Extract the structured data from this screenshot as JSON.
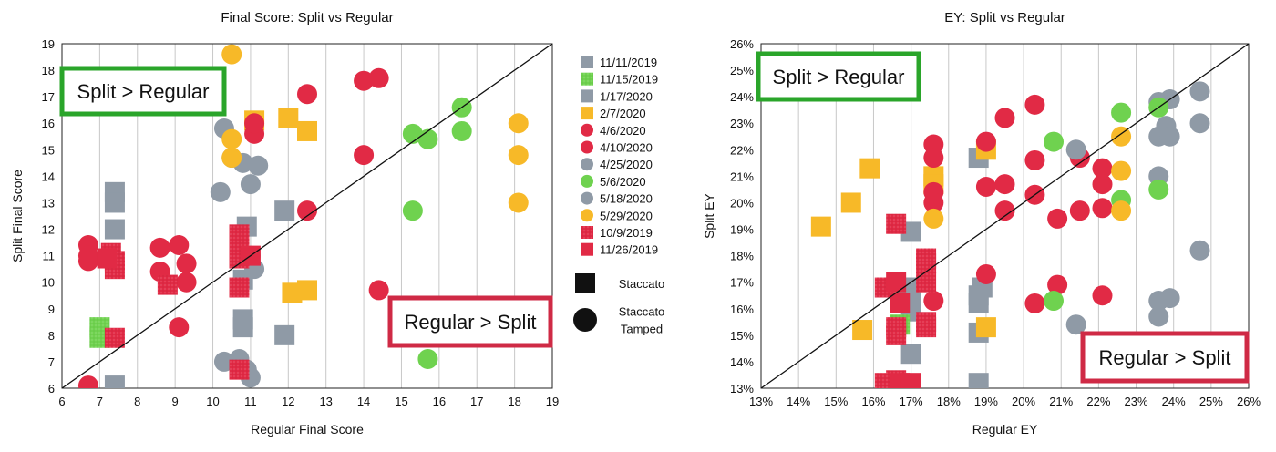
{
  "colors": {
    "gray": "#8f9aa6",
    "green": "#6fd24f",
    "yellow": "#f7b928",
    "red": "#e12a45",
    "green_box": "#2aa52a",
    "red_box": "#cf2a45"
  },
  "legend": {
    "entries": [
      {
        "label": "11/11/2019",
        "color": "gray",
        "shape": "square",
        "texture": false
      },
      {
        "label": "11/15/2019",
        "color": "green",
        "shape": "square",
        "texture": true
      },
      {
        "label": "1/17/2020",
        "color": "gray",
        "shape": "square",
        "texture": false
      },
      {
        "label": "2/7/2020",
        "color": "yellow",
        "shape": "square",
        "texture": false
      },
      {
        "label": "4/6/2020",
        "color": "red",
        "shape": "circle",
        "texture": false
      },
      {
        "label": "4/10/2020",
        "color": "red",
        "shape": "circle",
        "texture": false
      },
      {
        "label": "4/25/2020",
        "color": "gray",
        "shape": "circle",
        "texture": false
      },
      {
        "label": "5/6/2020",
        "color": "green",
        "shape": "circle",
        "texture": false
      },
      {
        "label": "5/18/2020",
        "color": "gray",
        "shape": "circle",
        "texture": false
      },
      {
        "label": "5/29/2020",
        "color": "yellow",
        "shape": "circle",
        "texture": false
      },
      {
        "label": "10/9/2019",
        "color": "red",
        "shape": "square",
        "texture": true
      },
      {
        "label": "11/26/2019",
        "color": "red",
        "shape": "square",
        "texture": false
      }
    ],
    "shapes": [
      {
        "shape": "square",
        "label_lines": [
          "Staccato"
        ]
      },
      {
        "shape": "circle",
        "label_lines": [
          "Staccato",
          "Tamped"
        ]
      }
    ]
  },
  "chart_data": [
    {
      "type": "scatter",
      "title": "Final Score: Split vs Regular",
      "xlabel": "Regular Final Score",
      "ylabel": "Split Final Score",
      "xlim": [
        6,
        19
      ],
      "ylim": [
        6,
        19
      ],
      "xticks": [
        6,
        7,
        8,
        9,
        10,
        11,
        12,
        13,
        14,
        15,
        16,
        17,
        18,
        19
      ],
      "yticks": [
        6,
        7,
        8,
        9,
        10,
        11,
        12,
        13,
        14,
        15,
        16,
        17,
        18,
        19
      ],
      "tick_format": "int",
      "grid": "vertical",
      "reference_line": "y=x",
      "annotations": [
        {
          "text": "Split > Regular",
          "color": "green_box",
          "corner": "top-left"
        },
        {
          "text": "Regular > Split",
          "color": "red_box",
          "corner": "bottom-right"
        }
      ],
      "series": [
        {
          "name": "11/11/2019",
          "color": "gray",
          "shape": "square",
          "points": [
            [
              7.4,
              13.4
            ],
            [
              7.4,
              13.0
            ],
            [
              7.4,
              12.0
            ],
            [
              7.4,
              6.1
            ],
            [
              10.9,
              12.1
            ],
            [
              10.8,
              8.6
            ],
            [
              10.8,
              8.3
            ],
            [
              11.9,
              8.0
            ]
          ]
        },
        {
          "name": "11/15/2019",
          "color": "green",
          "shape": "square",
          "points": [
            [
              7.0,
              8.3
            ],
            [
              7.0,
              7.9
            ]
          ]
        },
        {
          "name": "1/17/2020",
          "color": "gray",
          "shape": "square",
          "points": [
            [
              11.9,
              12.7
            ],
            [
              10.8,
              10.1
            ]
          ]
        },
        {
          "name": "2/7/2020",
          "color": "yellow",
          "shape": "square",
          "points": [
            [
              11.1,
              16.1
            ],
            [
              12.0,
              16.2
            ],
            [
              12.5,
              15.7
            ],
            [
              12.1,
              9.6
            ],
            [
              12.5,
              9.7
            ]
          ]
        },
        {
          "name": "4/6/2020",
          "color": "red",
          "shape": "circle",
          "points": [
            [
              6.7,
              11.4
            ],
            [
              6.7,
              11.0
            ],
            [
              6.7,
              10.8
            ],
            [
              8.6,
              11.3
            ],
            [
              8.6,
              10.4
            ],
            [
              9.1,
              11.4
            ],
            [
              9.3,
              10.7
            ],
            [
              9.3,
              10.0
            ],
            [
              9.1,
              8.3
            ],
            [
              6.7,
              6.1
            ]
          ]
        },
        {
          "name": "4/10/2020",
          "color": "red",
          "shape": "circle",
          "points": [
            [
              11.1,
              15.6
            ],
            [
              11.1,
              16.0
            ],
            [
              12.5,
              17.1
            ],
            [
              14.0,
              17.6
            ],
            [
              14.4,
              17.7
            ],
            [
              14.0,
              14.8
            ],
            [
              12.5,
              12.7
            ],
            [
              14.4,
              9.7
            ]
          ]
        },
        {
          "name": "4/25/2020",
          "color": "gray",
          "shape": "circle",
          "points": [
            [
              10.3,
              15.8
            ],
            [
              10.2,
              13.4
            ],
            [
              10.5,
              14.7
            ],
            [
              10.8,
              14.5
            ],
            [
              11.2,
              14.4
            ],
            [
              11.0,
              13.7
            ],
            [
              11.0,
              11.0
            ],
            [
              11.1,
              10.5
            ],
            [
              10.7,
              7.1
            ]
          ]
        },
        {
          "name": "5/6/2020",
          "color": "green",
          "shape": "circle",
          "points": [
            [
              15.3,
              15.6
            ],
            [
              15.7,
              15.4
            ],
            [
              16.6,
              16.6
            ],
            [
              16.6,
              15.7
            ],
            [
              15.3,
              12.7
            ],
            [
              15.7,
              7.1
            ]
          ]
        },
        {
          "name": "5/18/2020",
          "color": "gray",
          "shape": "circle",
          "points": [
            [
              10.3,
              7.0
            ],
            [
              10.9,
              6.7
            ],
            [
              11.0,
              6.4
            ]
          ]
        },
        {
          "name": "5/29/2020",
          "color": "yellow",
          "shape": "circle",
          "points": [
            [
              10.5,
              18.6
            ],
            [
              10.5,
              15.4
            ],
            [
              10.5,
              14.7
            ],
            [
              18.1,
              16.0
            ],
            [
              18.1,
              14.8
            ],
            [
              18.1,
              13.0
            ]
          ]
        },
        {
          "name": "10/9/2019",
          "color": "red",
          "shape": "square",
          "points": [
            [
              7.3,
              11.1
            ],
            [
              7.4,
              10.8
            ],
            [
              7.4,
              10.5
            ],
            [
              7.4,
              7.9
            ],
            [
              8.8,
              9.9
            ],
            [
              10.7,
              11.8
            ],
            [
              10.7,
              11.5
            ],
            [
              10.7,
              11.2
            ],
            [
              10.7,
              10.9
            ],
            [
              10.7,
              9.8
            ],
            [
              10.7,
              6.7
            ]
          ]
        },
        {
          "name": "11/26/2019",
          "color": "red",
          "shape": "square",
          "points": [
            [
              7.2,
              10.9
            ],
            [
              11.0,
              11.0
            ]
          ]
        }
      ]
    },
    {
      "type": "scatter",
      "title": "EY: Split vs Regular",
      "xlabel": "Regular EY",
      "ylabel": "Split EY",
      "xlim": [
        13,
        26
      ],
      "ylim": [
        13,
        26
      ],
      "xticks": [
        13,
        14,
        15,
        16,
        17,
        18,
        19,
        20,
        21,
        22,
        23,
        24,
        25,
        26
      ],
      "yticks": [
        13,
        14,
        15,
        16,
        17,
        18,
        19,
        20,
        21,
        22,
        23,
        24,
        25,
        26
      ],
      "tick_format": "percent",
      "grid": "vertical",
      "reference_line": "y=x",
      "annotations": [
        {
          "text": "Split > Regular",
          "color": "green_box",
          "corner": "top-left"
        },
        {
          "text": "Regular > Split",
          "color": "red_box",
          "corner": "bottom-right"
        }
      ],
      "series": [
        {
          "name": "11/11/2019",
          "color": "gray",
          "shape": "square",
          "points": [
            [
              18.8,
              21.7
            ],
            [
              18.9,
              16.8
            ],
            [
              18.8,
              16.5
            ],
            [
              18.8,
              16.2
            ],
            [
              17.0,
              18.9
            ],
            [
              17.0,
              16.5
            ],
            [
              17.0,
              16.3
            ],
            [
              17.0,
              15.9
            ],
            [
              17.0,
              14.3
            ],
            [
              17.0,
              13.0
            ],
            [
              18.8,
              15.1
            ],
            [
              18.8,
              13.2
            ]
          ]
        },
        {
          "name": "11/15/2019",
          "color": "green",
          "shape": "square",
          "points": [
            [
              16.7,
              16.8
            ],
            [
              16.7,
              15.4
            ]
          ]
        },
        {
          "name": "1/17/2020",
          "color": "gray",
          "shape": "square",
          "points": [
            [
              16.9,
              16.8
            ],
            [
              17.0,
              16.4
            ]
          ]
        },
        {
          "name": "2/7/2020",
          "color": "yellow",
          "shape": "square",
          "points": [
            [
              15.9,
              21.3
            ],
            [
              15.4,
              20.0
            ],
            [
              14.6,
              19.1
            ],
            [
              15.7,
              15.2
            ],
            [
              19.0,
              22.0
            ],
            [
              19.0,
              15.3
            ],
            [
              17.6,
              21.0
            ],
            [
              17.6,
              20.7
            ]
          ]
        },
        {
          "name": "4/6/2020",
          "color": "red",
          "shape": "circle",
          "points": [
            [
              17.6,
              22.2
            ],
            [
              17.6,
              21.7
            ],
            [
              17.6,
              20.4
            ],
            [
              17.6,
              20.0
            ],
            [
              17.6,
              16.3
            ],
            [
              19.0,
              22.3
            ],
            [
              19.0,
              20.6
            ],
            [
              19.0,
              17.3
            ],
            [
              19.5,
              23.2
            ],
            [
              19.5,
              20.7
            ],
            [
              19.5,
              19.7
            ],
            [
              20.3,
              21.6
            ],
            [
              20.3,
              20.3
            ],
            [
              20.3,
              16.2
            ]
          ]
        },
        {
          "name": "4/10/2020",
          "color": "red",
          "shape": "circle",
          "points": [
            [
              20.3,
              23.7
            ],
            [
              20.9,
              19.4
            ],
            [
              20.9,
              16.9
            ],
            [
              21.5,
              21.7
            ],
            [
              21.5,
              19.7
            ],
            [
              22.1,
              21.3
            ],
            [
              22.1,
              20.7
            ],
            [
              22.1,
              19.8
            ],
            [
              22.1,
              16.5
            ]
          ]
        },
        {
          "name": "4/25/2020",
          "color": "gray",
          "shape": "circle",
          "points": [
            [
              21.4,
              22.0
            ],
            [
              21.4,
              15.4
            ],
            [
              23.6,
              23.8
            ],
            [
              23.6,
              22.5
            ],
            [
              23.6,
              21.0
            ],
            [
              23.8,
              22.9
            ],
            [
              23.9,
              22.5
            ],
            [
              23.9,
              23.9
            ]
          ]
        },
        {
          "name": "5/6/2020",
          "color": "green",
          "shape": "circle",
          "points": [
            [
              20.8,
              22.3
            ],
            [
              20.8,
              16.3
            ],
            [
              22.6,
              23.4
            ],
            [
              22.6,
              20.1
            ],
            [
              23.6,
              23.6
            ],
            [
              23.6,
              20.5
            ]
          ]
        },
        {
          "name": "5/18/2020",
          "color": "gray",
          "shape": "circle",
          "points": [
            [
              23.6,
              16.3
            ],
            [
              23.9,
              16.4
            ],
            [
              23.6,
              15.7
            ],
            [
              24.7,
              24.2
            ],
            [
              24.7,
              23.0
            ],
            [
              24.7,
              18.2
            ]
          ]
        },
        {
          "name": "5/29/2020",
          "color": "yellow",
          "shape": "circle",
          "points": [
            [
              17.6,
              19.4
            ],
            [
              22.6,
              22.5
            ],
            [
              22.6,
              21.2
            ],
            [
              22.6,
              19.7
            ]
          ]
        },
        {
          "name": "10/9/2019",
          "color": "red",
          "shape": "square",
          "points": [
            [
              16.6,
              19.2
            ],
            [
              16.3,
              16.8
            ],
            [
              16.6,
              15.3
            ],
            [
              16.6,
              15.0
            ],
            [
              16.6,
              13.3
            ],
            [
              16.3,
              13.2
            ],
            [
              17.4,
              17.9
            ],
            [
              17.4,
              17.7
            ],
            [
              17.4,
              17.0
            ],
            [
              17.4,
              15.5
            ],
            [
              17.4,
              15.3
            ]
          ]
        },
        {
          "name": "11/26/2019",
          "color": "red",
          "shape": "square",
          "points": [
            [
              16.6,
              17.0
            ],
            [
              16.7,
              16.2
            ],
            [
              16.7,
              13.2
            ],
            [
              17.0,
              13.2
            ]
          ]
        }
      ]
    }
  ]
}
